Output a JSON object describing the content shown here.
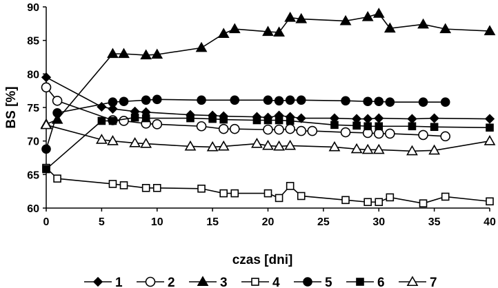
{
  "chart_data": {
    "type": "line",
    "title": "",
    "xlabel": "czas [dni]",
    "ylabel": "BS [%]",
    "xlim": [
      0,
      40
    ],
    "ylim": [
      60,
      90
    ],
    "xticks": [
      0,
      5,
      10,
      15,
      20,
      25,
      30,
      35,
      40
    ],
    "yticks": [
      60,
      65,
      70,
      75,
      80,
      85,
      90
    ],
    "grid": false,
    "legend_position": "bottom",
    "series": [
      {
        "name": "1",
        "marker": "filled-diamond",
        "color": "#000000",
        "x": [
          0,
          5,
          6,
          8,
          9,
          13,
          15,
          16,
          19,
          20,
          21,
          22,
          23,
          26,
          28,
          29,
          30,
          33,
          35,
          40
        ],
        "y": [
          79.5,
          75.1,
          74.8,
          74.4,
          74.3,
          73.9,
          73.8,
          73.7,
          73.6,
          73.5,
          73.8,
          73.6,
          73.4,
          73.4,
          73.3,
          73.3,
          73.4,
          73.3,
          73.4,
          73.3
        ]
      },
      {
        "name": "2",
        "marker": "open-circle",
        "color": "#000000",
        "x": [
          0,
          1,
          6,
          7,
          9,
          10,
          14,
          16,
          17,
          20,
          21,
          22,
          23,
          24,
          27,
          29,
          30,
          31,
          34,
          36
        ],
        "y": [
          78.0,
          76.0,
          73.1,
          73.0,
          72.6,
          72.5,
          72.2,
          71.8,
          71.8,
          71.7,
          71.7,
          71.8,
          71.5,
          71.5,
          71.3,
          71.2,
          71.1,
          71.1,
          70.9,
          70.7
        ]
      },
      {
        "name": "3",
        "marker": "filled-triangle",
        "color": "#000000",
        "x": [
          0,
          1,
          6,
          7,
          9,
          10,
          14,
          16,
          17,
          20,
          21,
          22,
          23,
          27,
          29,
          30,
          31,
          34,
          36,
          40
        ],
        "y": [
          72.5,
          73.2,
          83.0,
          83.0,
          82.8,
          82.9,
          83.9,
          86.0,
          86.7,
          86.3,
          86.2,
          88.4,
          88.2,
          87.9,
          88.5,
          89.0,
          86.8,
          87.4,
          86.7,
          86.4
        ]
      },
      {
        "name": "4",
        "marker": "open-square",
        "color": "#000000",
        "x": [
          0,
          1,
          6,
          7,
          9,
          10,
          14,
          16,
          17,
          20,
          21,
          22,
          23,
          27,
          29,
          30,
          31,
          34,
          36,
          40
        ],
        "y": [
          66.0,
          64.4,
          63.6,
          63.4,
          63.0,
          63.0,
          62.9,
          62.2,
          62.2,
          62.2,
          61.5,
          63.3,
          61.8,
          61.2,
          60.9,
          60.9,
          61.6,
          60.7,
          61.7,
          61.0
        ]
      },
      {
        "name": "5",
        "marker": "filled-circle",
        "color": "#000000",
        "x": [
          0,
          1,
          6,
          7,
          9,
          10,
          14,
          17,
          20,
          21,
          22,
          23,
          27,
          29,
          30,
          31,
          34,
          36
        ],
        "y": [
          68.8,
          74.2,
          75.8,
          75.9,
          76.1,
          76.2,
          76.1,
          76.1,
          76.1,
          76.0,
          76.1,
          76.1,
          76.0,
          75.9,
          75.9,
          75.8,
          75.8,
          75.8
        ]
      },
      {
        "name": "6",
        "marker": "filled-square",
        "color": "#000000",
        "x": [
          0,
          5,
          6,
          8,
          9,
          13,
          15,
          16,
          19,
          20,
          21,
          22,
          26,
          28,
          29,
          30,
          33,
          35,
          40
        ],
        "y": [
          65.8,
          73.0,
          73.0,
          73.5,
          73.4,
          73.4,
          73.3,
          73.2,
          73.1,
          73.1,
          73.1,
          73.0,
          72.4,
          72.3,
          72.2,
          72.2,
          72.2,
          72.1,
          72.0
        ]
      },
      {
        "name": "7",
        "marker": "open-triangle",
        "color": "#000000",
        "x": [
          0,
          5,
          6,
          8,
          9,
          13,
          15,
          16,
          19,
          20,
          21,
          22,
          26,
          28,
          29,
          30,
          33,
          35,
          40
        ],
        "y": [
          72.4,
          70.2,
          70.0,
          69.7,
          69.6,
          69.2,
          69.1,
          69.2,
          69.6,
          69.3,
          69.2,
          69.3,
          69.1,
          68.8,
          68.7,
          68.7,
          68.5,
          68.6,
          70.0
        ]
      }
    ]
  }
}
